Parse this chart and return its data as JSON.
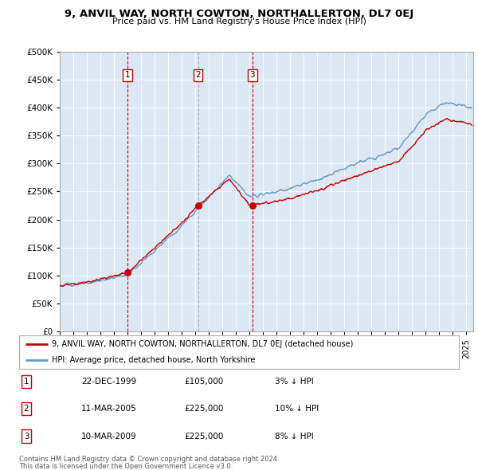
{
  "title1": "9, ANVIL WAY, NORTH COWTON, NORTHALLERTON, DL7 0EJ",
  "title2": "Price paid vs. HM Land Registry's House Price Index (HPI)",
  "legend_line1": "9, ANVIL WAY, NORTH COWTON, NORTHALLERTON, DL7 0EJ (detached house)",
  "legend_line2": "HPI: Average price, detached house, North Yorkshire",
  "footer1": "Contains HM Land Registry data © Crown copyright and database right 2024.",
  "footer2": "This data is licensed under the Open Government Licence v3.0.",
  "sales": [
    {
      "num": 1,
      "date": "22-DEC-1999",
      "price": 105000,
      "hpi_rel": "3% ↓ HPI",
      "x": 2000.0,
      "vline_style": "--",
      "vline_color": "#cc0000"
    },
    {
      "num": 2,
      "date": "11-MAR-2005",
      "price": 225000,
      "hpi_rel": "10% ↓ HPI",
      "x": 2005.2,
      "vline_style": "--",
      "vline_color": "#aaaaaa"
    },
    {
      "num": 3,
      "date": "10-MAR-2009",
      "price": 225000,
      "hpi_rel": "8% ↓ HPI",
      "x": 2009.2,
      "vline_style": "--",
      "vline_color": "#cc0000"
    }
  ],
  "sale_color": "#cc0000",
  "hpi_color": "#6699cc",
  "plot_bg_color": "#dce9f5",
  "ylim": [
    0,
    500000
  ],
  "yticks": [
    0,
    50000,
    100000,
    150000,
    200000,
    250000,
    300000,
    350000,
    400000,
    450000,
    500000
  ],
  "xlim_start": 1995,
  "xlim_end": 2025.5
}
